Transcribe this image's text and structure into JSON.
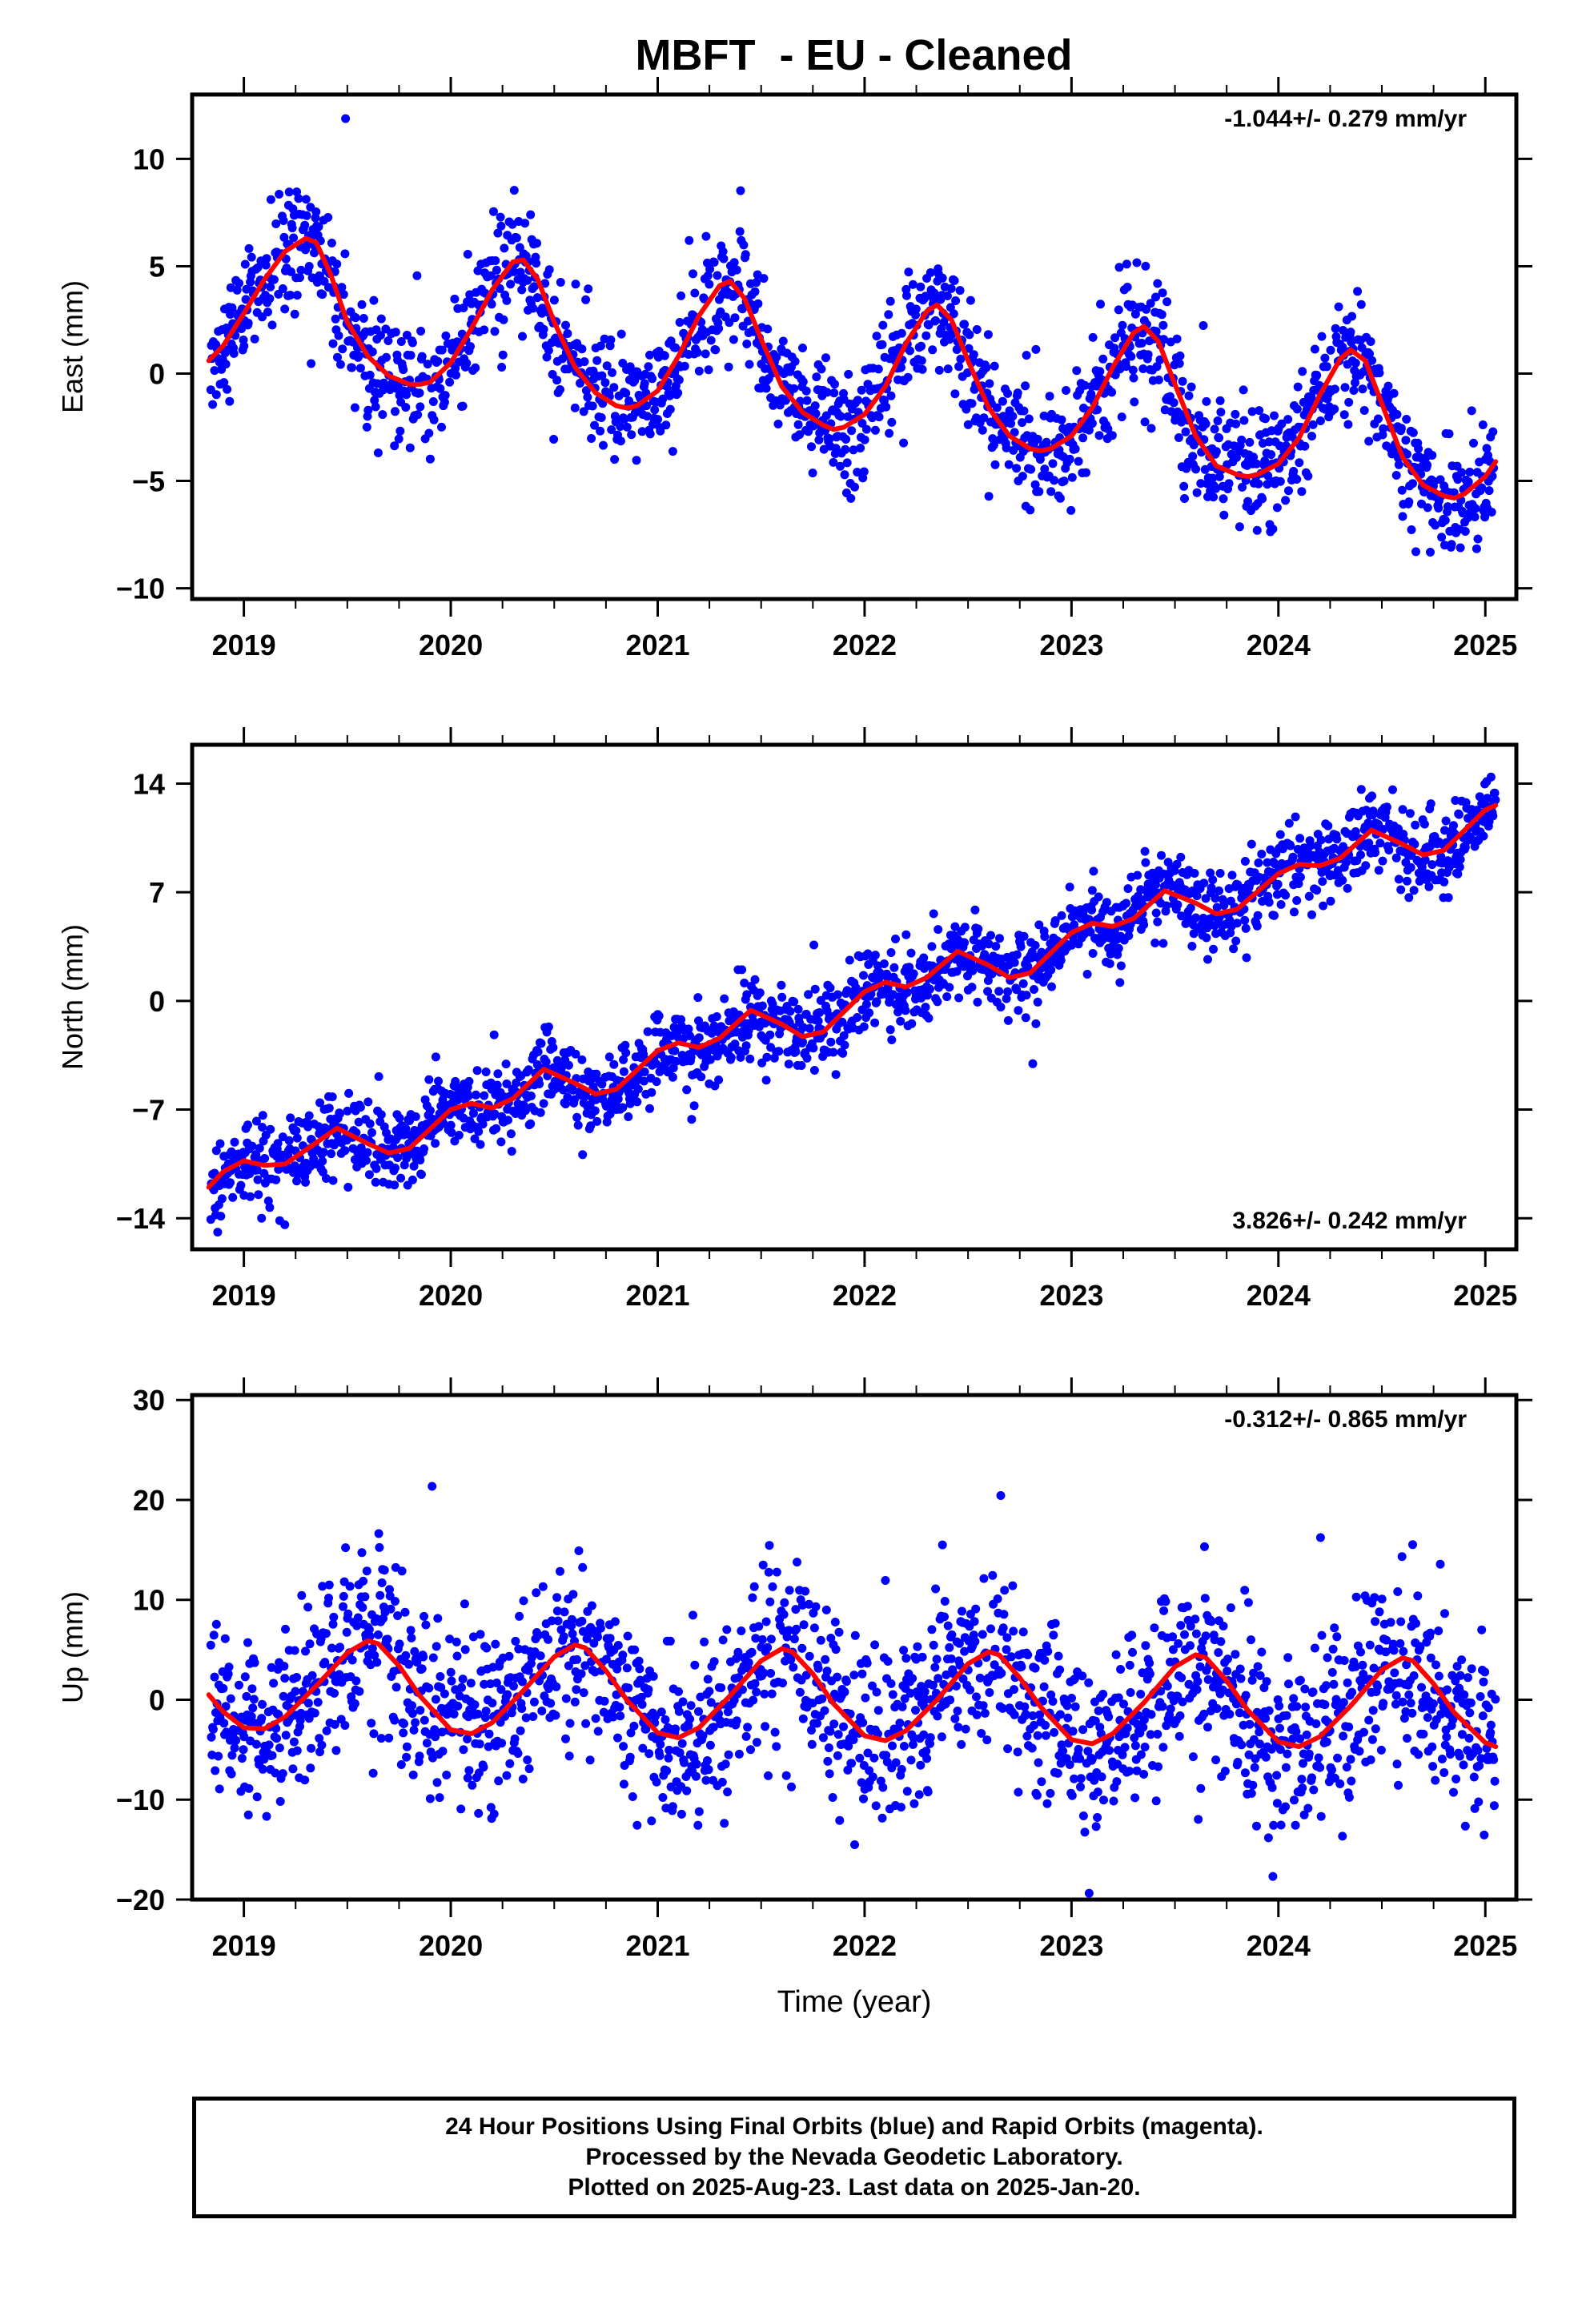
{
  "figure": {
    "title": "MBFT  - EU - Cleaned",
    "footer": [
      "24 Hour Positions Using Final Orbits (blue) and Rapid Orbits (magenta).",
      "Processed by the Nevada Geodetic Laboratory.",
      "Plotted on 2025-Aug-23. Last data on 2025-Jan-20."
    ]
  },
  "colors": {
    "points": "#0000ff",
    "fit": "#ff0000",
    "axes": "#000000"
  },
  "chart_data": [
    {
      "type": "scatter",
      "ylabel": "East (mm)",
      "xlabel": "",
      "xlim": [
        2018.75,
        2025.15
      ],
      "ylim": [
        -10.5,
        13
      ],
      "xticks": [
        2019,
        2020,
        2021,
        2022,
        2023,
        2024,
        2025
      ],
      "yticks": [
        10,
        5,
        0,
        -5,
        -10
      ],
      "rate_label": "-1.044+/- 0.279 mm/yr",
      "rate_pos": "top-right",
      "series": [
        {
          "role": "fit",
          "x": [
            2018.83,
            2018.9,
            2019.0,
            2019.1,
            2019.2,
            2019.3,
            2019.35,
            2019.42,
            2019.5,
            2019.6,
            2019.7,
            2019.8,
            2019.85,
            2019.9,
            2020.0,
            2020.1,
            2020.2,
            2020.3,
            2020.35,
            2020.42,
            2020.5,
            2020.6,
            2020.7,
            2020.8,
            2020.85,
            2020.9,
            2021.0,
            2021.1,
            2021.2,
            2021.3,
            2021.35,
            2021.42,
            2021.5,
            2021.6,
            2021.7,
            2021.8,
            2021.85,
            2021.9,
            2022.0,
            2022.1,
            2022.2,
            2022.3,
            2022.35,
            2022.42,
            2022.5,
            2022.6,
            2022.7,
            2022.8,
            2022.85,
            2022.9,
            2023.0,
            2023.1,
            2023.2,
            2023.3,
            2023.35,
            2023.42,
            2023.5,
            2023.6,
            2023.7,
            2023.8,
            2023.85,
            2023.9,
            2024.0,
            2024.1,
            2024.2,
            2024.3,
            2024.35,
            2024.42,
            2024.5,
            2024.6,
            2024.7,
            2024.8,
            2024.85,
            2024.9,
            2025.0,
            2025.05
          ],
          "y": [
            0.6,
            1.3,
            2.8,
            4.4,
            5.7,
            6.3,
            6.1,
            4.6,
            2.4,
            0.8,
            -0.1,
            -0.5,
            -0.5,
            -0.4,
            0.5,
            2.1,
            3.9,
            5.2,
            5.3,
            4.4,
            2.4,
            0.3,
            -0.9,
            -1.5,
            -1.6,
            -1.5,
            -0.8,
            0.8,
            2.7,
            4.1,
            4.3,
            3.5,
            1.6,
            -0.6,
            -1.8,
            -2.4,
            -2.6,
            -2.5,
            -1.9,
            -0.6,
            1.4,
            2.9,
            3.2,
            2.5,
            0.6,
            -1.6,
            -2.9,
            -3.5,
            -3.6,
            -3.5,
            -2.9,
            -1.6,
            0.3,
            1.9,
            2.2,
            1.5,
            -0.5,
            -2.9,
            -4.3,
            -4.7,
            -4.8,
            -4.7,
            -4.2,
            -3.0,
            -1.0,
            0.7,
            1.1,
            0.6,
            -1.4,
            -3.9,
            -5.2,
            -5.7,
            -5.8,
            -5.6,
            -4.8,
            -4.1
          ]
        }
      ]
    },
    {
      "type": "scatter",
      "ylabel": "North (mm)",
      "xlabel": "",
      "xlim": [
        2018.75,
        2025.15
      ],
      "ylim": [
        -16,
        16.5
      ],
      "xticks": [
        2019,
        2020,
        2021,
        2022,
        2023,
        2024,
        2025
      ],
      "yticks": [
        14,
        7,
        0,
        -7,
        -14
      ],
      "rate_label": "3.826+/- 0.242 mm/yr",
      "rate_pos": "bottom-right",
      "series": [
        {
          "role": "fit",
          "x": [
            2018.83,
            2018.9,
            2019.0,
            2019.1,
            2019.2,
            2019.3,
            2019.45,
            2019.6,
            2019.7,
            2019.8,
            2020.0,
            2020.1,
            2020.2,
            2020.3,
            2020.45,
            2020.6,
            2020.7,
            2020.8,
            2021.0,
            2021.1,
            2021.2,
            2021.3,
            2021.45,
            2021.6,
            2021.7,
            2021.8,
            2022.0,
            2022.1,
            2022.2,
            2022.3,
            2022.45,
            2022.6,
            2022.7,
            2022.8,
            2023.0,
            2023.1,
            2023.2,
            2023.3,
            2023.45,
            2023.6,
            2023.7,
            2023.8,
            2024.0,
            2024.1,
            2024.2,
            2024.3,
            2024.45,
            2024.6,
            2024.7,
            2024.8,
            2025.0,
            2025.05
          ],
          "y": [
            -12.0,
            -11.0,
            -10.3,
            -10.6,
            -10.5,
            -9.6,
            -8.2,
            -9.2,
            -9.8,
            -9.5,
            -7.0,
            -6.6,
            -6.9,
            -6.3,
            -4.4,
            -5.3,
            -6.0,
            -5.7,
            -3.2,
            -2.7,
            -3.0,
            -2.4,
            -0.6,
            -1.5,
            -2.3,
            -2.0,
            0.6,
            1.2,
            0.9,
            1.5,
            3.2,
            2.3,
            1.5,
            1.8,
            4.4,
            5.0,
            4.8,
            5.3,
            7.1,
            6.3,
            5.6,
            5.9,
            8.2,
            8.8,
            8.7,
            9.2,
            11.0,
            10.1,
            9.4,
            9.7,
            12.3,
            12.6
          ]
        }
      ]
    },
    {
      "type": "scatter",
      "ylabel": "Up (mm)",
      "xlabel": "Time (year)",
      "xlim": [
        2018.75,
        2025.15
      ],
      "ylim": [
        -20,
        30.5
      ],
      "xticks": [
        2019,
        2020,
        2021,
        2022,
        2023,
        2024,
        2025
      ],
      "yticks": [
        30,
        20,
        10,
        0,
        -10,
        -20
      ],
      "rate_label": "-0.312+/- 0.865 mm/yr",
      "rate_pos": "top-right",
      "series": [
        {
          "role": "fit",
          "x": [
            2018.83,
            2018.9,
            2019.0,
            2019.1,
            2019.2,
            2019.35,
            2019.5,
            2019.6,
            2019.65,
            2019.75,
            2019.85,
            2020.0,
            2020.1,
            2020.2,
            2020.35,
            2020.5,
            2020.6,
            2020.65,
            2020.75,
            2020.85,
            2021.0,
            2021.1,
            2021.2,
            2021.35,
            2021.5,
            2021.6,
            2021.65,
            2021.75,
            2021.85,
            2022.0,
            2022.1,
            2022.2,
            2022.35,
            2022.5,
            2022.6,
            2022.65,
            2022.75,
            2022.85,
            2023.0,
            2023.1,
            2023.2,
            2023.35,
            2023.5,
            2023.6,
            2023.65,
            2023.75,
            2023.85,
            2024.0,
            2024.1,
            2024.2,
            2024.35,
            2024.5,
            2024.6,
            2024.65,
            2024.75,
            2024.85,
            2025.0,
            2025.05
          ],
          "y": [
            0.5,
            -1.2,
            -2.8,
            -2.9,
            -1.7,
            1.4,
            4.7,
            5.9,
            5.6,
            3.4,
            0.4,
            -3.0,
            -3.4,
            -2.3,
            0.9,
            4.3,
            5.5,
            5.2,
            2.9,
            0.0,
            -3.3,
            -3.8,
            -2.8,
            0.4,
            3.9,
            5.1,
            4.8,
            2.6,
            -0.4,
            -3.6,
            -4.1,
            -3.1,
            0.0,
            3.6,
            4.8,
            4.5,
            2.2,
            -0.7,
            -4.0,
            -4.4,
            -3.4,
            -0.3,
            3.3,
            4.5,
            4.2,
            1.9,
            -1.0,
            -4.2,
            -4.7,
            -3.7,
            -0.6,
            3.0,
            4.2,
            3.9,
            1.6,
            -1.3,
            -4.3,
            -4.7
          ]
        }
      ]
    }
  ]
}
